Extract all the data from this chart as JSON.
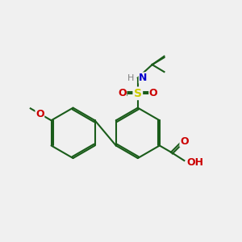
{
  "background_color": "#f0f0f0",
  "atom_colors": {
    "C": "#000000",
    "N": "#0000cc",
    "O": "#cc0000",
    "S": "#cccc00",
    "H": "#808080"
  },
  "bond_color": "#1a5c1a",
  "figsize": [
    3.0,
    3.0
  ],
  "dpi": 100
}
